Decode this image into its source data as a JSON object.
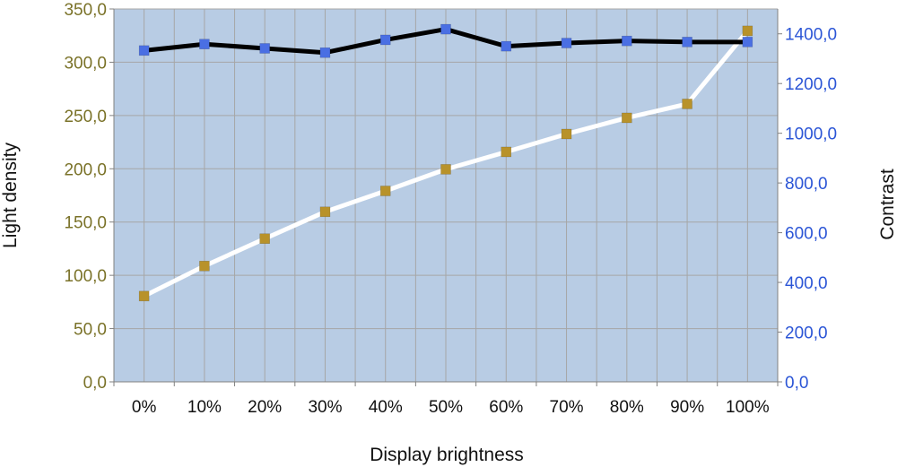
{
  "chart_data": {
    "type": "line",
    "xlabel": "Display brightness",
    "ylabel": "Light density",
    "y2label": "Contrast",
    "categories": [
      "0%",
      "10%",
      "20%",
      "30%",
      "40%",
      "50%",
      "60%",
      "70%",
      "80%",
      "90%",
      "100%"
    ],
    "ylim": [
      0,
      350
    ],
    "y2lim": [
      0,
      1500
    ],
    "yticks": [
      "0,0",
      "50,0",
      "100,0",
      "150,0",
      "200,0",
      "250,0",
      "300,0",
      "350,0"
    ],
    "y2ticks": [
      "0,0",
      "200,0",
      "400,0",
      "600,0",
      "800,0",
      "1000,0",
      "1200,0",
      "1400,0"
    ],
    "grid": true,
    "series": [
      {
        "axis": "left",
        "line_color": "#000000",
        "marker_color": "#4a6fe3",
        "values": [
          311,
          317,
          313,
          309,
          321,
          331,
          315,
          318,
          320,
          319,
          319
        ]
      },
      {
        "axis": "right",
        "line_color": "#ffffff",
        "marker_color": "#b8922a",
        "values": [
          345,
          466,
          576,
          684,
          768,
          855,
          925,
          997,
          1062,
          1118,
          1412
        ]
      }
    ],
    "colors": {
      "plot_background": "#b8cce4",
      "grid": "#a6a6a6",
      "left_axis_text": "#7a7228",
      "right_axis_text": "#2b55d6"
    }
  }
}
